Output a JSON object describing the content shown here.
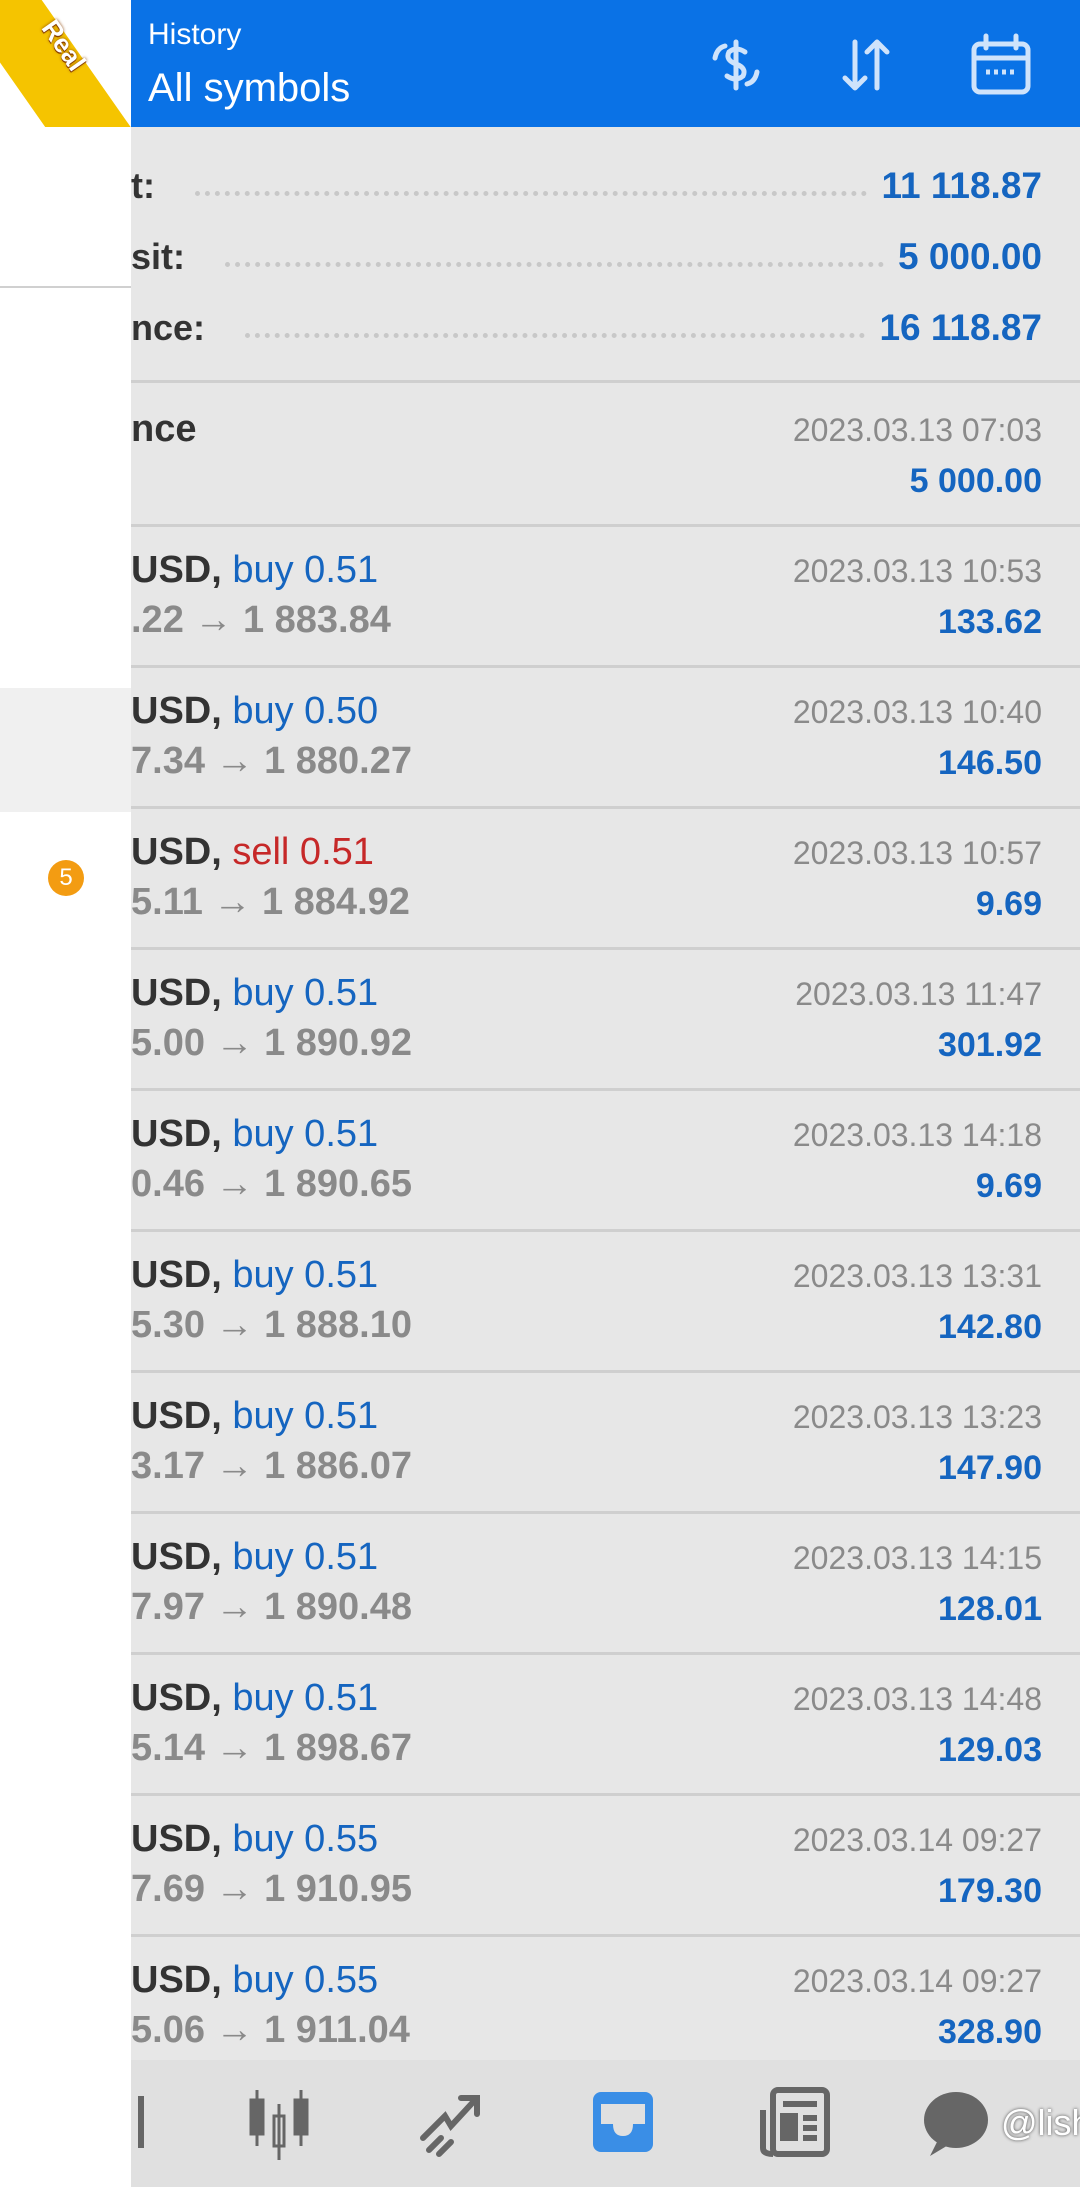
{
  "drawer": {
    "ribbon": "Real",
    "badge": "5"
  },
  "header": {
    "title": "History",
    "subtitle": "All symbols",
    "icons": [
      "currency-exchange-icon",
      "sort-icon",
      "calendar-icon"
    ]
  },
  "summary": [
    {
      "label": "t:",
      "value": "11 118.87"
    },
    {
      "label": "sit:",
      "value": "5 000.00"
    },
    {
      "label": "nce:",
      "value": "16 118.87"
    }
  ],
  "balance": {
    "label": "nce",
    "date": "2023.03.13 07:03",
    "amount": "5 000.00"
  },
  "deals": [
    {
      "symbol": "USD,",
      "side": "buy 0.51",
      "prices": ".22 → 1 883.84",
      "date": "2023.03.13 10:53",
      "profit": "133.62"
    },
    {
      "symbol": "USD,",
      "side": "buy 0.50",
      "prices": "7.34 → 1 880.27",
      "date": "2023.03.13 10:40",
      "profit": "146.50"
    },
    {
      "symbol": "USD,",
      "side": "sell 0.51",
      "prices": "5.11 → 1 884.92",
      "date": "2023.03.13 10:57",
      "profit": "9.69"
    },
    {
      "symbol": "USD,",
      "side": "buy 0.51",
      "prices": "5.00 → 1 890.92",
      "date": "2023.03.13 11:47",
      "profit": "301.92"
    },
    {
      "symbol": "USD,",
      "side": "buy 0.51",
      "prices": "0.46 → 1 890.65",
      "date": "2023.03.13 14:18",
      "profit": "9.69"
    },
    {
      "symbol": "USD,",
      "side": "buy 0.51",
      "prices": "5.30 → 1 888.10",
      "date": "2023.03.13 13:31",
      "profit": "142.80"
    },
    {
      "symbol": "USD,",
      "side": "buy 0.51",
      "prices": "3.17 → 1 886.07",
      "date": "2023.03.13 13:23",
      "profit": "147.90"
    },
    {
      "symbol": "USD,",
      "side": "buy 0.51",
      "prices": "7.97 → 1 890.48",
      "date": "2023.03.13 14:15",
      "profit": "128.01"
    },
    {
      "symbol": "USD,",
      "side": "buy 0.51",
      "prices": "5.14 → 1 898.67",
      "date": "2023.03.13 14:48",
      "profit": "129.03"
    },
    {
      "symbol": "USD,",
      "side": "buy 0.55",
      "prices": "7.69 → 1 910.95",
      "date": "2023.03.14 09:27",
      "profit": "179.30"
    },
    {
      "symbol": "USD,",
      "side": "buy 0.55",
      "prices": "5.06 → 1 911.04",
      "date": "2023.03.14 09:27",
      "profit": "328.90"
    }
  ],
  "bottombar": {
    "items": [
      "quotes-icon",
      "chart-icon",
      "trade-icon",
      "history-icon",
      "news-icon",
      "chat-icon"
    ],
    "active": "history-icon",
    "watermark": "@lishy"
  },
  "colors": {
    "header": "#0a72e6",
    "value": "#1565c0",
    "sell": "#c62828",
    "badge": "#f39c12"
  }
}
